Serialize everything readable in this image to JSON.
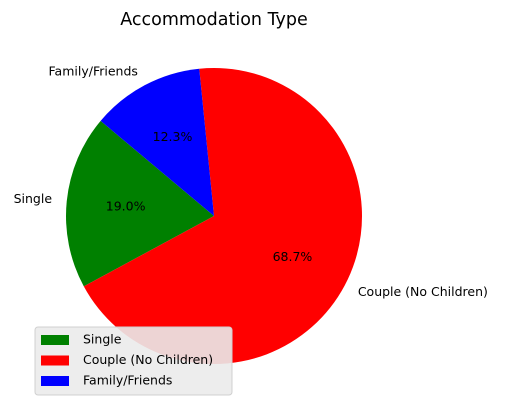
{
  "chart_data": {
    "type": "pie",
    "title": "Accommodation Type",
    "start_angle_deg": 140,
    "direction": "counterclockwise",
    "legend_position": "lower-left",
    "slices": [
      {
        "label": "Single",
        "value": 19.0,
        "pct_label": "19.0%",
        "color": "#008000"
      },
      {
        "label": "Couple (No Children)",
        "value": 68.7,
        "pct_label": "68.7%",
        "color": "#ff0000"
      },
      {
        "label": "Family/Friends",
        "value": 12.3,
        "pct_label": "12.3%",
        "color": "#0000ff"
      }
    ]
  }
}
